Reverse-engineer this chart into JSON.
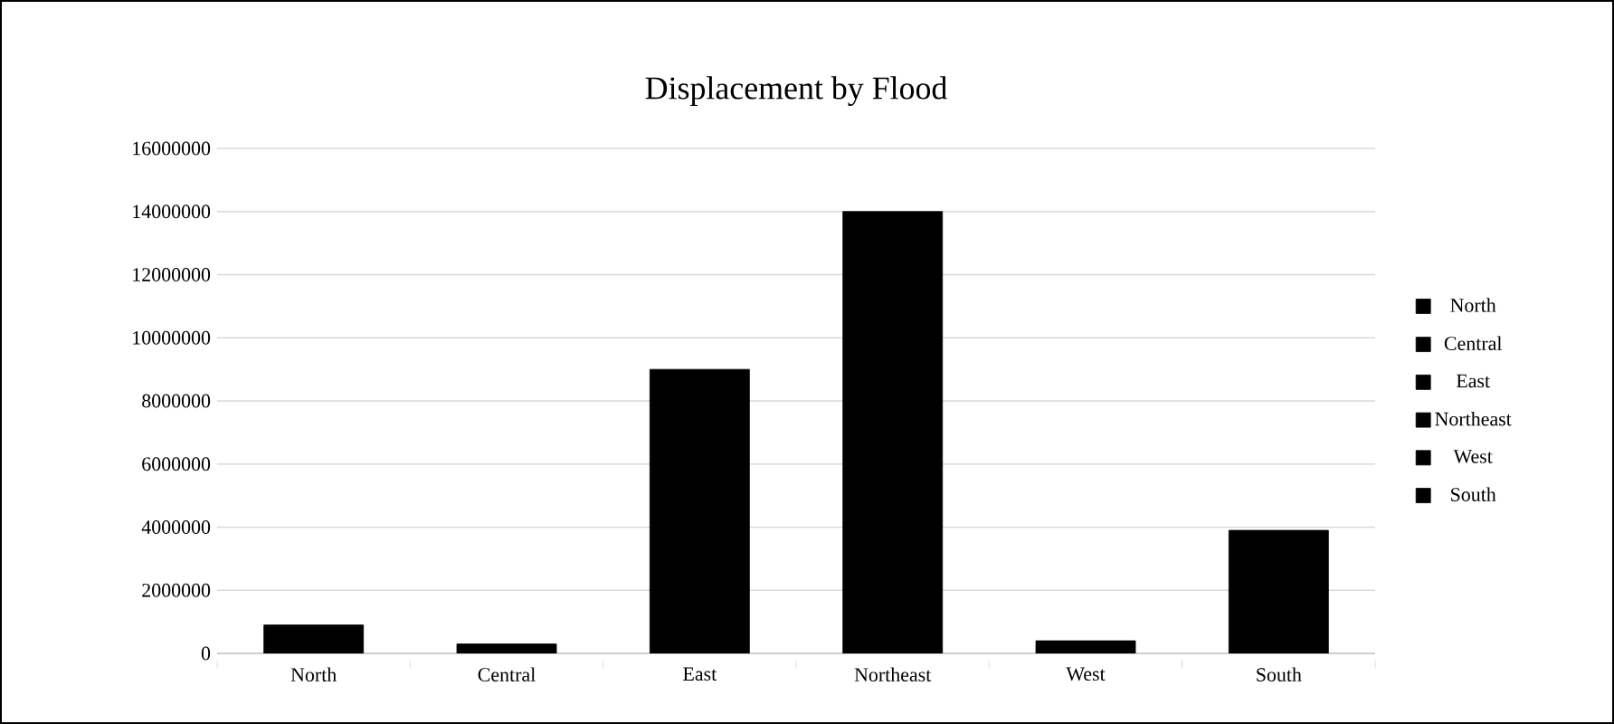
{
  "chart_data": {
    "type": "bar",
    "title": "Displacement by Flood",
    "categories": [
      "North",
      "Central",
      "East",
      "Northeast",
      "West",
      "South"
    ],
    "series": [
      {
        "name": "North",
        "color": "#000000",
        "values": [
          900000,
          null,
          null,
          null,
          null,
          null
        ]
      },
      {
        "name": "Central",
        "color": "#000000",
        "values": [
          null,
          300000,
          null,
          null,
          null,
          null
        ]
      },
      {
        "name": "East",
        "color": "#000000",
        "values": [
          null,
          null,
          9000000,
          null,
          null,
          null
        ]
      },
      {
        "name": "Northeast",
        "color": "#000000",
        "values": [
          null,
          null,
          null,
          14000000,
          null,
          null
        ]
      },
      {
        "name": "West",
        "color": "#000000",
        "values": [
          null,
          null,
          null,
          null,
          400000,
          null
        ]
      },
      {
        "name": "South",
        "color": "#000000",
        "values": [
          null,
          null,
          null,
          null,
          null,
          3900000
        ]
      }
    ],
    "ylim": [
      0,
      16000000
    ],
    "yticks": [
      0,
      2000000,
      4000000,
      6000000,
      8000000,
      10000000,
      12000000,
      14000000,
      16000000
    ],
    "grid": "y",
    "legend": "right"
  }
}
